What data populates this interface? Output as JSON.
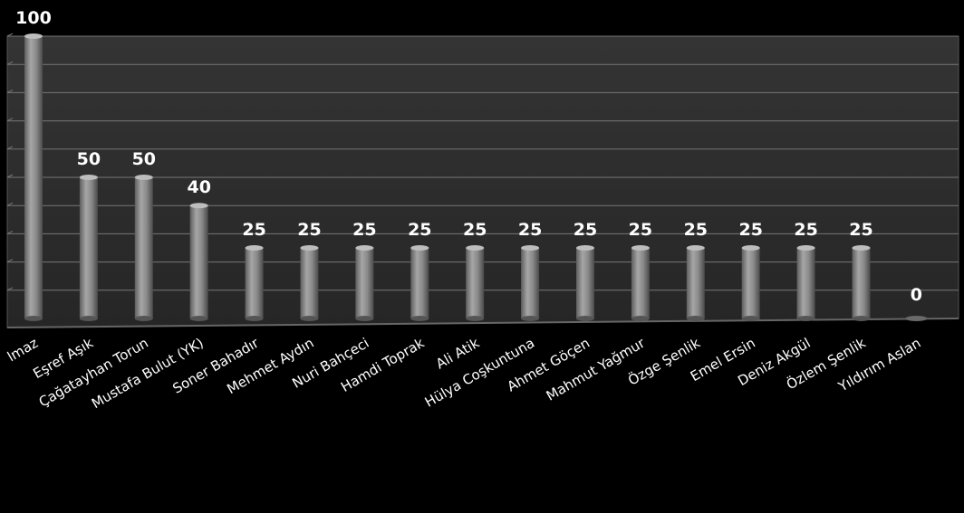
{
  "chart_data": {
    "type": "bar",
    "categories": [
      "...lmaz",
      "Eşref Aşık",
      "Çağatayhan Torun",
      "Mustafa Bulut (YK)",
      "Soner Bahadır",
      "Mehmet Aydın",
      "Nuri Bahçeci",
      "Hamdi Toprak",
      "Ali Atik",
      "Hülya Coşkuntuna",
      "Ahmet Göçen",
      "Mahmut Yağmur",
      "Özge Şenlik",
      "Emel Ersin",
      "Deniz Akgül",
      "Özlem Şenlik",
      "Yıldırım Aslan"
    ],
    "values": [
      100,
      50,
      50,
      40,
      25,
      25,
      25,
      25,
      25,
      25,
      25,
      25,
      25,
      25,
      25,
      25,
      0
    ],
    "value_labels": [
      "100",
      "50",
      "50",
      "40",
      "25",
      "25",
      "25",
      "25",
      "25",
      "25",
      "25",
      "25",
      "25",
      "25",
      "25",
      "25",
      "0"
    ],
    "ylim": [
      0,
      100
    ],
    "grid": true,
    "legend": "none",
    "colors": {
      "background": "#000000",
      "plot_wall": "#2b2b2b",
      "grid": "#777777",
      "bar": "#8c8c8c",
      "bar_top": "#bdbdbd",
      "text": "#ffffff"
    }
  }
}
